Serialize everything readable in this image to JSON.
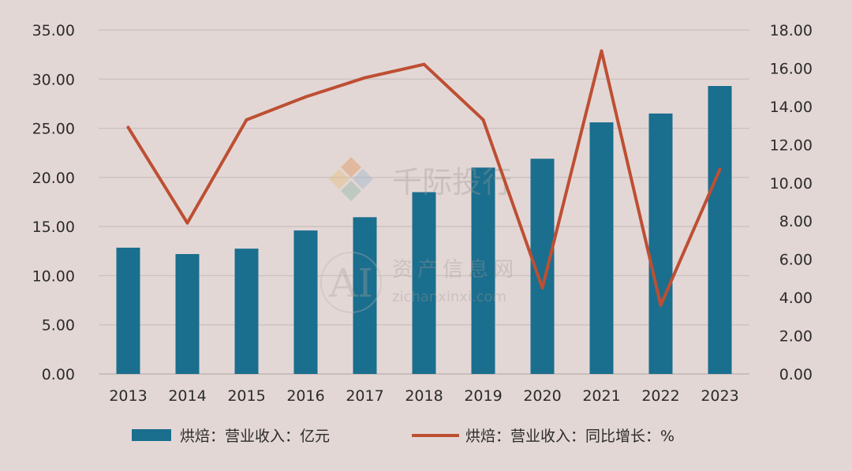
{
  "chart_data": {
    "type": "bar",
    "categories": [
      "2013",
      "2014",
      "2015",
      "2016",
      "2017",
      "2018",
      "2019",
      "2020",
      "2021",
      "2022",
      "2023"
    ],
    "series": [
      {
        "name": "烘焙：营业收入：亿元",
        "type": "bar",
        "axis": "left",
        "color": "#1a6e8e",
        "values": [
          12.85,
          12.2,
          12.75,
          14.6,
          15.95,
          18.5,
          21.0,
          21.9,
          25.6,
          26.5,
          29.3
        ]
      },
      {
        "name": "烘焙：营业收入：同比增长：%",
        "type": "line",
        "axis": "right",
        "color": "#bd4f33",
        "values": [
          12.9,
          7.9,
          13.3,
          14.5,
          15.5,
          16.2,
          13.3,
          4.5,
          16.9,
          3.6,
          10.7
        ]
      }
    ],
    "ylim_left": [
      0,
      35
    ],
    "ylim_right": [
      0,
      18
    ],
    "yticks_left": [
      "0.00",
      "5.00",
      "10.00",
      "15.00",
      "20.00",
      "25.00",
      "30.00",
      "35.00"
    ],
    "yticks_right": [
      "0.00",
      "2.00",
      "4.00",
      "6.00",
      "8.00",
      "10.00",
      "12.00",
      "14.00",
      "16.00",
      "18.00"
    ],
    "grid": "horizontal",
    "legend": "bottom-center",
    "watermark": {
      "brand": "千际投行",
      "site_cn": "资产信息网",
      "site_url": "zichanxinxi.com",
      "logo": "AI"
    }
  }
}
